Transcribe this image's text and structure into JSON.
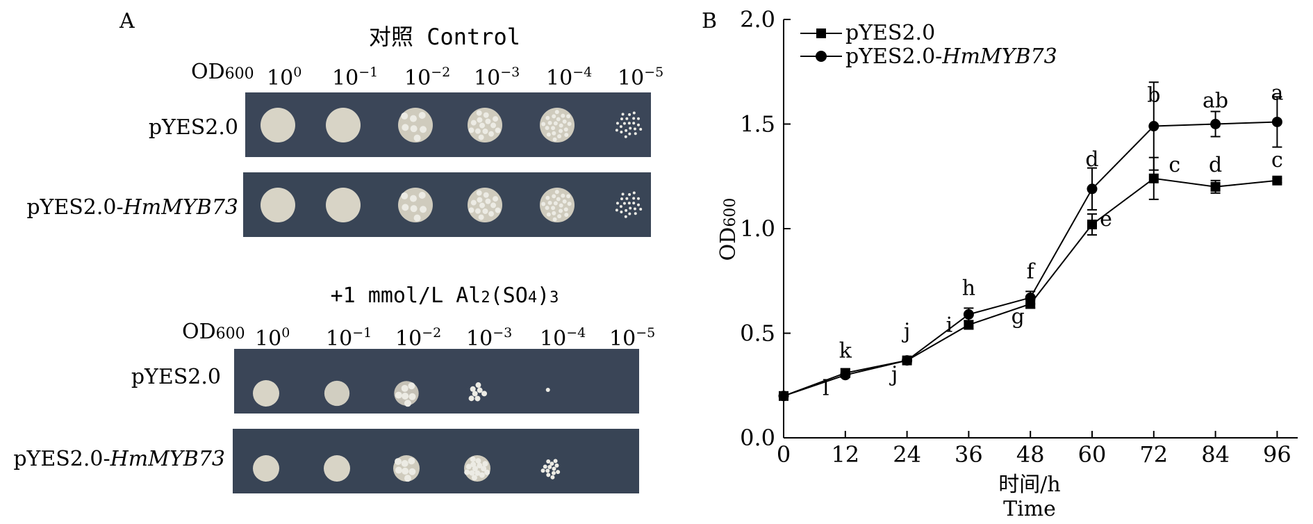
{
  "panel_a": {
    "label": "A",
    "sections": [
      {
        "title": "对照 Control",
        "od_label": "OD",
        "od_sub": "600",
        "dilution_base": "10",
        "dilution_exps": [
          "0",
          "−1",
          "−2",
          "−3",
          "−4",
          "−5"
        ],
        "rows": [
          {
            "label_plain": "pYES2.0",
            "label_italic": "",
            "growth": [
              1.0,
              1.0,
              1.0,
              1.0,
              1.0,
              0.8
            ]
          },
          {
            "label_plain": "pYES2.0-",
            "label_italic": "HmMYB73",
            "growth": [
              1.0,
              1.0,
              1.0,
              1.0,
              1.0,
              0.8
            ]
          }
        ]
      },
      {
        "title_pre": "+1 mmol/L Al",
        "title_sub1": "2",
        "title_mid": "(SO",
        "title_sub2": "4",
        "title_post": ")",
        "title_sub3": "3",
        "od_label": "OD",
        "od_sub": "600",
        "dilution_base": "10",
        "dilution_exps": [
          "0",
          "−1",
          "−2",
          "−3",
          "−4",
          "−5"
        ],
        "rows": [
          {
            "label_plain": "pYES2.0",
            "label_italic": "",
            "growth": [
              1.0,
              0.9,
              0.85,
              0.5,
              0.05,
              0.0
            ]
          },
          {
            "label_plain": "pYES2.0-",
            "label_italic": "HmMYB73",
            "growth": [
              1.0,
              1.0,
              1.0,
              1.0,
              0.6,
              0.0
            ]
          }
        ]
      }
    ]
  },
  "panel_b": {
    "label": "B",
    "chart_data": {
      "type": "line",
      "title": "",
      "xlabel": "时间/h",
      "xlabel2": "Time",
      "ylabel": "OD",
      "ylabel_sub": "600",
      "x": [
        0,
        12,
        24,
        36,
        48,
        60,
        72,
        84,
        96
      ],
      "xlim": [
        0,
        100
      ],
      "ylim": [
        0,
        2.0
      ],
      "yticks": [
        "0.0",
        "0.5",
        "1.0",
        "1.5",
        "2.0"
      ],
      "xticks": [
        "0",
        "12",
        "24",
        "36",
        "48",
        "60",
        "72",
        "84",
        "96"
      ],
      "grid": false,
      "legend_position": "top-left",
      "series": [
        {
          "name_plain": "pYES2.0",
          "name_italic": "",
          "marker": "square",
          "values": [
            0.2,
            0.31,
            0.37,
            0.54,
            0.64,
            1.02,
            1.24,
            1.2,
            1.23
          ],
          "errors": [
            0.0,
            0.02,
            0.01,
            0.02,
            0.02,
            0.05,
            0.1,
            0.03,
            0.01
          ],
          "letters": [
            "",
            "l",
            "j",
            "i",
            "g",
            "e",
            "c",
            "d",
            "c"
          ]
        },
        {
          "name_plain": "pYES2.0-",
          "name_italic": "HmMYB73",
          "marker": "circle",
          "values": [
            0.2,
            0.3,
            0.37,
            0.59,
            0.67,
            1.19,
            1.49,
            1.5,
            1.51
          ],
          "errors": [
            0.0,
            0.01,
            0.01,
            0.03,
            0.03,
            0.1,
            0.21,
            0.06,
            0.12
          ],
          "letters": [
            "",
            "k",
            "j",
            "h",
            "f",
            "d",
            "b",
            "ab",
            "a"
          ]
        }
      ]
    }
  }
}
